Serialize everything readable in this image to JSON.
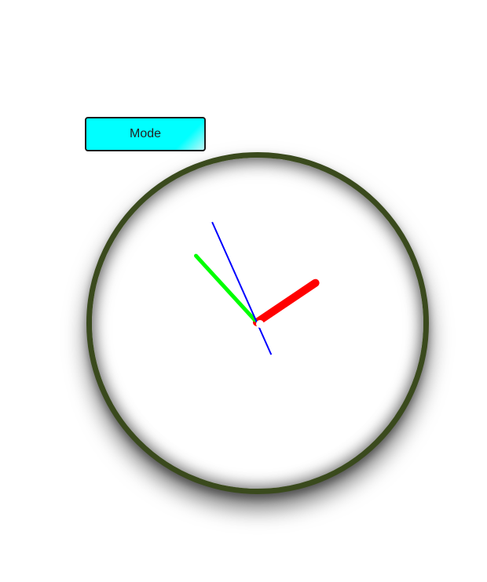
{
  "controls": {
    "mode_label": "Mode"
  },
  "clock": {
    "time": {
      "hours": 1,
      "minutes": 52,
      "seconds": 56
    },
    "colors": {
      "frame": "#3a4a1d",
      "hour_hand": "#ff0000",
      "minute_hand": "#00ff00",
      "second_hand": "#0000ff",
      "face": "#ffffff"
    }
  }
}
